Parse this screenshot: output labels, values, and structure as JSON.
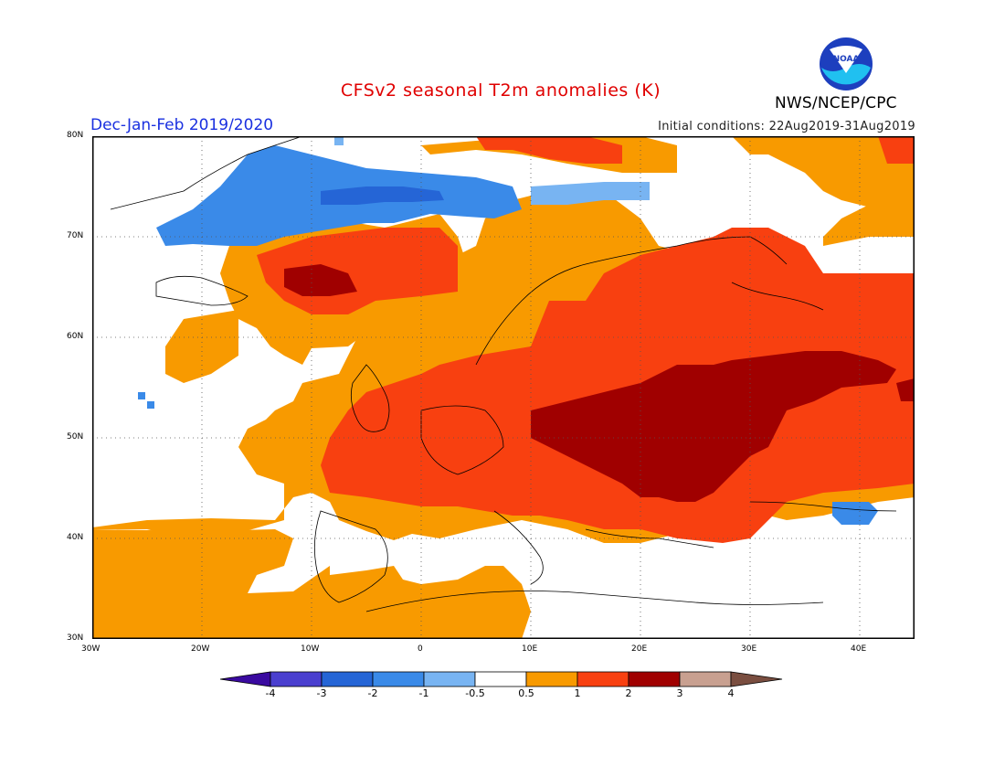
{
  "header": {
    "title": "CFSv2 seasonal T2m anomalies (K)",
    "season": "Dec-Jan-Feb 2019/2020",
    "initial_conditions": "Initial conditions: 22Aug2019-31Aug2019",
    "agency": "NWS/NCEP/CPC",
    "logo_text": "NOAA"
  },
  "map": {
    "projection": "equirectangular",
    "lon_range": [
      -30,
      45
    ],
    "lat_range": [
      30,
      80
    ],
    "grid": "dotted",
    "lat_labels": [
      "80N",
      "70N",
      "60N",
      "50N",
      "40N",
      "30N"
    ],
    "lon_labels": [
      "30W",
      "20W",
      "10W",
      "0",
      "10E",
      "20E",
      "30E",
      "40E"
    ],
    "region": "Europe"
  },
  "colorbar": {
    "colors": [
      "#3a0aa0",
      "#4a3fcf",
      "#2565d6",
      "#3a8ae8",
      "#78b4f2",
      "#ffffff",
      "#f89a00",
      "#f84010",
      "#a00000",
      "#c8a090",
      "#7a4e40"
    ],
    "labels": [
      "-4",
      "-3",
      "-2",
      "-1",
      "-0.5",
      "0.5",
      "1",
      "2",
      "3",
      "4"
    ]
  }
}
